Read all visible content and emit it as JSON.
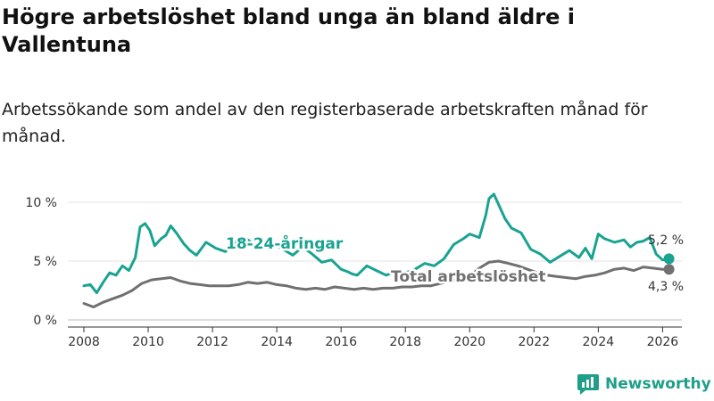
{
  "title": "Högre arbetslöshet bland unga än bland äldre i Vallentuna",
  "subtitle": "Arbetssökande som andel av den registerbaserade arbetskraften månad för månad.",
  "brand": {
    "name": "Newsworthy"
  },
  "colors": {
    "youth": "#1aa391",
    "total": "#707070",
    "axis": "#333333",
    "grid": "#e3e3e3"
  },
  "chart_data": {
    "type": "line",
    "title": "Högre arbetslöshet bland unga än bland äldre i Vallentuna",
    "xlabel": "",
    "ylabel": "",
    "xlim": [
      2007.5,
      2026.6
    ],
    "ylim": [
      0,
      10
    ],
    "y_ticks": [
      0,
      5,
      10
    ],
    "y_tick_labels": [
      "0 %",
      "5 %",
      "10 %"
    ],
    "x_ticks": [
      2008,
      2010,
      2012,
      2014,
      2016,
      2018,
      2020,
      2022,
      2024,
      2026
    ],
    "x_tick_labels": [
      "2008",
      "2010",
      "2012",
      "2014",
      "2016",
      "2018",
      "2020",
      "2022",
      "2024",
      "2026"
    ],
    "grid": true,
    "series": [
      {
        "name": "18-24-åringar",
        "label": "18-24-åringar",
        "color": "#1aa391",
        "end_label": "5,2 %",
        "x": [
          2008.0,
          2008.2,
          2008.4,
          2008.6,
          2008.8,
          2009.0,
          2009.2,
          2009.4,
          2009.6,
          2009.75,
          2009.9,
          2010.05,
          2010.2,
          2010.4,
          2010.55,
          2010.7,
          2010.9,
          2011.1,
          2011.3,
          2011.5,
          2011.8,
          2012.1,
          2012.4,
          2012.7,
          2013.0,
          2013.3,
          2013.6,
          2013.9,
          2014.2,
          2014.5,
          2014.8,
          2015.1,
          2015.4,
          2015.7,
          2016.0,
          2016.2,
          2016.35,
          2016.5,
          2016.8,
          2017.1,
          2017.4,
          2017.7,
          2018.0,
          2018.3,
          2018.6,
          2018.9,
          2019.2,
          2019.5,
          2019.8,
          2020.0,
          2020.3,
          2020.5,
          2020.6,
          2020.75,
          2020.9,
          2021.1,
          2021.3,
          2021.6,
          2021.9,
          2022.2,
          2022.5,
          2022.8,
          2023.1,
          2023.4,
          2023.6,
          2023.8,
          2024.0,
          2024.2,
          2024.5,
          2024.8,
          2025.0,
          2025.2,
          2025.4,
          2025.6,
          2025.8,
          2026.0,
          2026.2
        ],
        "values": [
          2.9,
          3.0,
          2.3,
          3.2,
          4.0,
          3.8,
          4.6,
          4.2,
          5.3,
          7.9,
          8.2,
          7.6,
          6.3,
          6.9,
          7.2,
          8.0,
          7.3,
          6.5,
          5.9,
          5.5,
          6.6,
          6.1,
          5.8,
          6.6,
          7.0,
          6.4,
          6.3,
          6.5,
          6.0,
          5.5,
          6.2,
          5.6,
          4.9,
          5.1,
          4.3,
          4.1,
          3.9,
          3.8,
          4.6,
          4.2,
          3.8,
          4.1,
          4.0,
          4.3,
          4.8,
          4.6,
          5.2,
          6.4,
          6.9,
          7.3,
          7.0,
          8.9,
          10.3,
          10.7,
          9.8,
          8.6,
          7.8,
          7.4,
          6.0,
          5.6,
          4.9,
          5.4,
          5.9,
          5.3,
          6.1,
          5.2,
          7.3,
          6.9,
          6.6,
          6.8,
          6.2,
          6.6,
          6.7,
          7.0,
          5.6,
          5.1,
          5.2
        ]
      },
      {
        "name": "Total arbetslöshet",
        "label": "Total arbetslöshet",
        "color": "#707070",
        "end_label": "4,3 %",
        "x": [
          2008.0,
          2008.3,
          2008.6,
          2008.9,
          2009.2,
          2009.5,
          2009.8,
          2010.1,
          2010.4,
          2010.7,
          2011.0,
          2011.3,
          2011.6,
          2011.9,
          2012.2,
          2012.5,
          2012.8,
          2013.1,
          2013.4,
          2013.7,
          2014.0,
          2014.3,
          2014.6,
          2014.9,
          2015.2,
          2015.5,
          2015.8,
          2016.1,
          2016.4,
          2016.7,
          2017.0,
          2017.3,
          2017.6,
          2017.9,
          2018.2,
          2018.5,
          2018.8,
          2019.1,
          2019.4,
          2019.7,
          2020.0,
          2020.3,
          2020.6,
          2020.9,
          2021.2,
          2021.5,
          2021.8,
          2022.1,
          2022.4,
          2022.7,
          2023.0,
          2023.3,
          2023.6,
          2023.9,
          2024.2,
          2024.5,
          2024.8,
          2025.1,
          2025.4,
          2025.7,
          2026.0,
          2026.2
        ],
        "values": [
          1.4,
          1.1,
          1.5,
          1.8,
          2.1,
          2.5,
          3.1,
          3.4,
          3.5,
          3.6,
          3.3,
          3.1,
          3.0,
          2.9,
          2.9,
          2.9,
          3.0,
          3.2,
          3.1,
          3.2,
          3.0,
          2.9,
          2.7,
          2.6,
          2.7,
          2.6,
          2.8,
          2.7,
          2.6,
          2.7,
          2.6,
          2.7,
          2.7,
          2.8,
          2.8,
          2.9,
          2.9,
          3.1,
          3.3,
          3.5,
          3.7,
          4.4,
          4.9,
          5.0,
          4.8,
          4.6,
          4.3,
          4.0,
          3.8,
          3.7,
          3.6,
          3.5,
          3.7,
          3.8,
          4.0,
          4.3,
          4.4,
          4.2,
          4.5,
          4.4,
          4.3,
          4.3
        ]
      }
    ]
  }
}
